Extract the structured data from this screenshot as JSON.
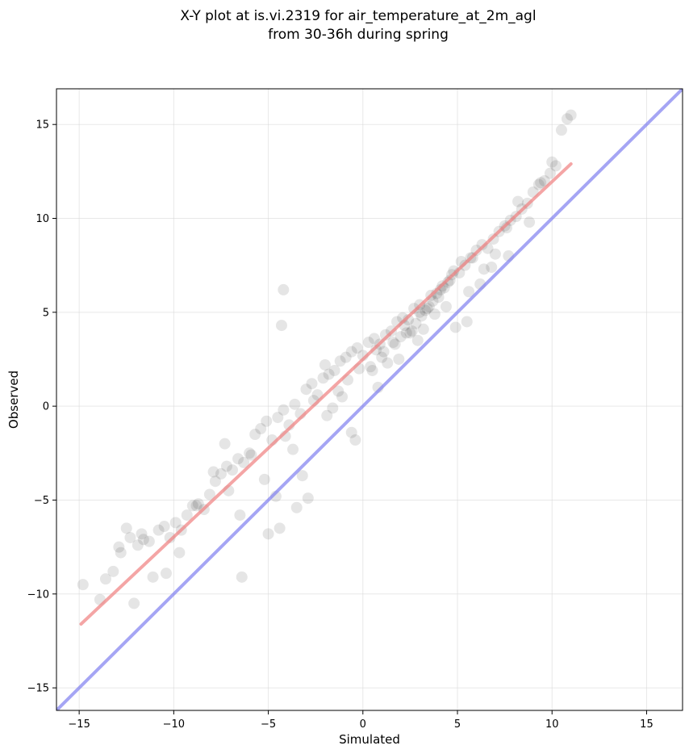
{
  "chart_data": {
    "type": "scatter",
    "title": "X-Y plot at is.vi.2319 for air_temperature_at_2m_agl",
    "subtitle": "from 30-36h during spring",
    "xlabel": "Simulated",
    "ylabel": "Observed",
    "xlim": [
      -16.2,
      16.9
    ],
    "ylim": [
      -16.2,
      16.9
    ],
    "xticks": [
      -15,
      -10,
      -5,
      0,
      5,
      10,
      15
    ],
    "yticks": [
      -15,
      -10,
      -5,
      0,
      5,
      10,
      15
    ],
    "xtick_labels": [
      "−15",
      "−10",
      "−5",
      "0",
      "5",
      "10",
      "15"
    ],
    "ytick_labels": [
      "−15",
      "−10",
      "−5",
      "0",
      "5",
      "10",
      "15"
    ],
    "grid": true,
    "legend": "none",
    "series": [
      {
        "kind": "scatter",
        "color": "#000000",
        "opacity": 0.1,
        "x": [
          -14.8,
          -13.9,
          -13.6,
          -13.2,
          -12.8,
          -12.5,
          -12.3,
          -12.1,
          -11.9,
          -11.6,
          -11.3,
          -11.1,
          -10.8,
          -10.5,
          -10.2,
          -9.9,
          -9.6,
          -9.3,
          -9.0,
          -8.7,
          -8.4,
          -8.1,
          -7.8,
          -7.5,
          -7.2,
          -6.9,
          -6.6,
          -6.3,
          -6.0,
          -5.7,
          -5.4,
          -5.1,
          -4.8,
          -4.5,
          -4.2,
          -3.9,
          -3.6,
          -3.3,
          -3.0,
          -2.7,
          -2.4,
          -2.1,
          -1.8,
          -1.5,
          -1.2,
          -0.9,
          -0.6,
          -0.3,
          0.0,
          0.3,
          0.6,
          0.9,
          1.2,
          1.5,
          1.8,
          2.1,
          2.4,
          2.7,
          3.0,
          3.3,
          3.6,
          3.9,
          4.2,
          4.5,
          4.8,
          5.1,
          5.4,
          5.7,
          6.0,
          6.3,
          6.6,
          6.9,
          7.2,
          7.5,
          7.8,
          8.1,
          8.4,
          8.7,
          9.0,
          9.3,
          9.6,
          9.9,
          10.2,
          10.5,
          10.8,
          11.0,
          -12.9,
          -11.7,
          -10.4,
          -9.7,
          -8.8,
          -7.9,
          -7.1,
          -6.5,
          -5.9,
          -5.2,
          -4.6,
          -4.1,
          -3.7,
          -3.2,
          -2.6,
          -1.9,
          -1.3,
          -0.8,
          -0.2,
          0.4,
          1.0,
          1.6,
          2.2,
          2.8,
          3.4,
          4.0,
          4.6,
          5.2,
          5.8,
          6.4,
          7.0,
          7.6,
          8.2,
          8.8,
          9.4,
          10.0,
          -6.4,
          -4.2,
          -4.3,
          -2.0,
          -1.1,
          -7.3,
          -3.5,
          -5.0,
          -0.6,
          0.5,
          1.3,
          2.5,
          3.2,
          4.4,
          5.6,
          6.2,
          6.8,
          7.7,
          -4.4,
          -2.9,
          -1.6,
          -0.4,
          0.8,
          1.9,
          2.9,
          3.8,
          4.9,
          5.5,
          1.1,
          2.0,
          2.6,
          3.1,
          3.7,
          4.3,
          0.7,
          1.7,
          2.3,
          3.0,
          3.5,
          4.1,
          4.7
        ],
        "y": [
          -9.5,
          -10.3,
          -9.2,
          -8.8,
          -7.8,
          -6.5,
          -7.0,
          -10.5,
          -7.4,
          -7.1,
          -7.2,
          -9.1,
          -6.6,
          -6.4,
          -7.0,
          -6.2,
          -6.6,
          -5.8,
          -5.3,
          -5.2,
          -5.5,
          -4.7,
          -4.0,
          -3.6,
          -3.2,
          -3.4,
          -2.8,
          -3.0,
          -2.5,
          -1.5,
          -1.2,
          -0.8,
          -1.8,
          -0.6,
          -0.2,
          -1.0,
          0.1,
          -0.4,
          0.9,
          1.2,
          0.6,
          1.5,
          1.7,
          1.9,
          2.4,
          2.6,
          2.9,
          3.1,
          2.7,
          3.4,
          3.6,
          3.3,
          3.8,
          4.0,
          4.5,
          4.7,
          4.6,
          5.2,
          5.4,
          5.1,
          5.9,
          6.0,
          6.4,
          6.6,
          7.2,
          7.1,
          7.5,
          7.9,
          8.3,
          8.6,
          8.4,
          8.9,
          9.3,
          9.6,
          9.9,
          10.1,
          10.5,
          10.8,
          11.4,
          11.8,
          12.0,
          12.4,
          12.8,
          14.7,
          15.3,
          15.5,
          -7.5,
          -6.8,
          -8.9,
          -7.8,
          -5.3,
          -3.5,
          -4.5,
          -5.8,
          -2.6,
          -3.9,
          -4.8,
          -1.6,
          -2.3,
          -3.7,
          0.3,
          -0.5,
          0.8,
          1.4,
          2.0,
          2.1,
          2.6,
          3.4,
          4.3,
          4.4,
          5.2,
          5.8,
          6.7,
          7.7,
          7.9,
          7.3,
          8.1,
          9.5,
          10.9,
          9.8,
          11.9,
          13.0,
          -9.1,
          6.2,
          4.3,
          2.2,
          0.5,
          -2.0,
          -5.4,
          -6.8,
          -1.4,
          1.9,
          2.3,
          3.9,
          4.1,
          5.3,
          6.1,
          6.5,
          7.4,
          8.0,
          -6.5,
          -4.9,
          -0.1,
          -1.8,
          1.0,
          2.5,
          3.5,
          4.9,
          4.2,
          4.5,
          2.9,
          3.7,
          4.0,
          4.8,
          5.6,
          6.3,
          3.0,
          3.3,
          3.9,
          5.0,
          5.3,
          6.2,
          7.0
        ]
      },
      {
        "kind": "line",
        "name": "",
        "color": "#f08080",
        "x": [
          -14.9,
          11.0
        ],
        "y": [
          -11.6,
          12.9
        ]
      },
      {
        "kind": "line",
        "name": "",
        "color": "#8080f0",
        "x": [
          -16.2,
          16.9
        ],
        "y": [
          -16.2,
          16.9
        ]
      }
    ]
  }
}
